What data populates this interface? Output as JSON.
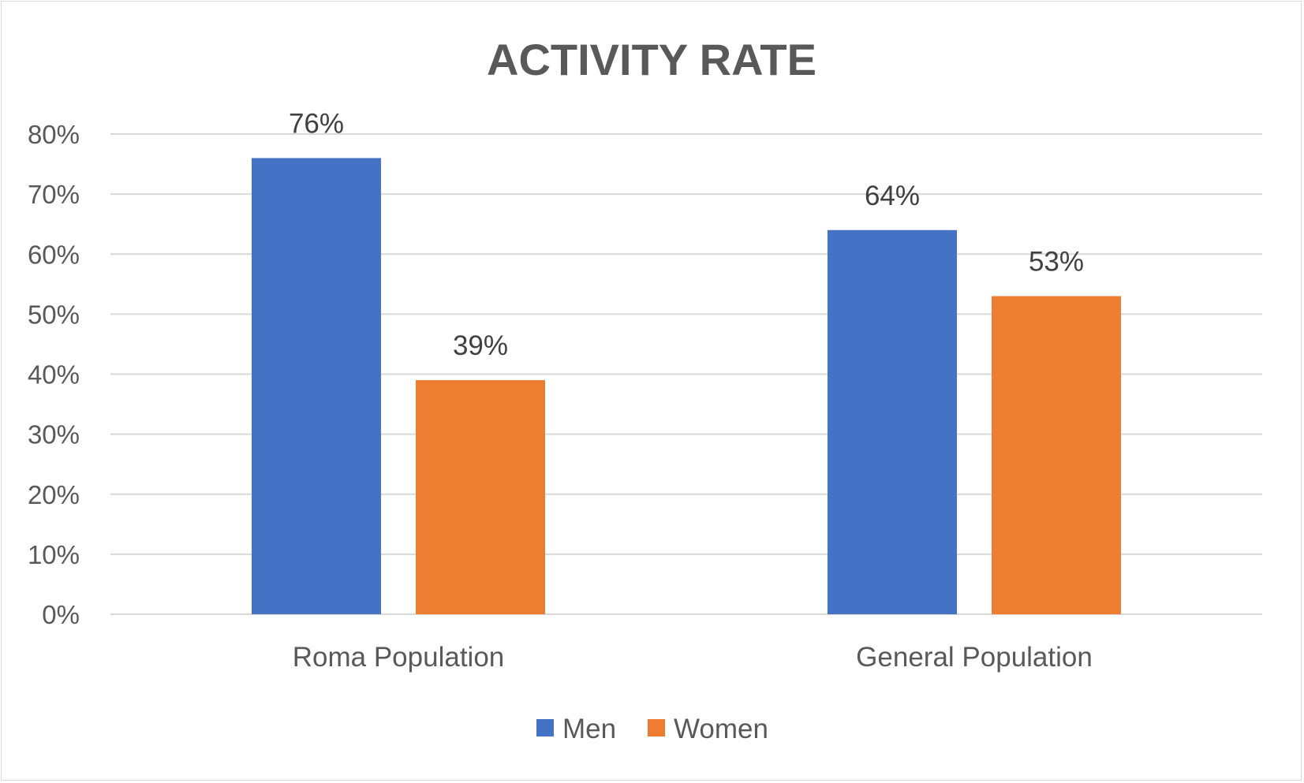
{
  "chart_data": {
    "type": "bar",
    "title": "ACTIVITY RATE",
    "categories": [
      "Roma Population",
      "General Population"
    ],
    "series": [
      {
        "name": "Men",
        "values": [
          0.76,
          0.64
        ],
        "labels": [
          "76%",
          "64%"
        ],
        "color": "#4472C4"
      },
      {
        "name": "Women",
        "values": [
          0.39,
          0.53
        ],
        "labels": [
          "39%",
          "53%"
        ],
        "color": "#ED7D31"
      }
    ],
    "ylim": [
      0,
      0.8
    ],
    "yticks": [
      0,
      0.1,
      0.2,
      0.3,
      0.4,
      0.5,
      0.6,
      0.7,
      0.8
    ],
    "ytick_labels": [
      "0%",
      "10%",
      "20%",
      "30%",
      "40%",
      "50%",
      "60%",
      "70%",
      "80%"
    ],
    "xlabel": "",
    "ylabel": "",
    "grid": true,
    "legend_position": "bottom"
  }
}
